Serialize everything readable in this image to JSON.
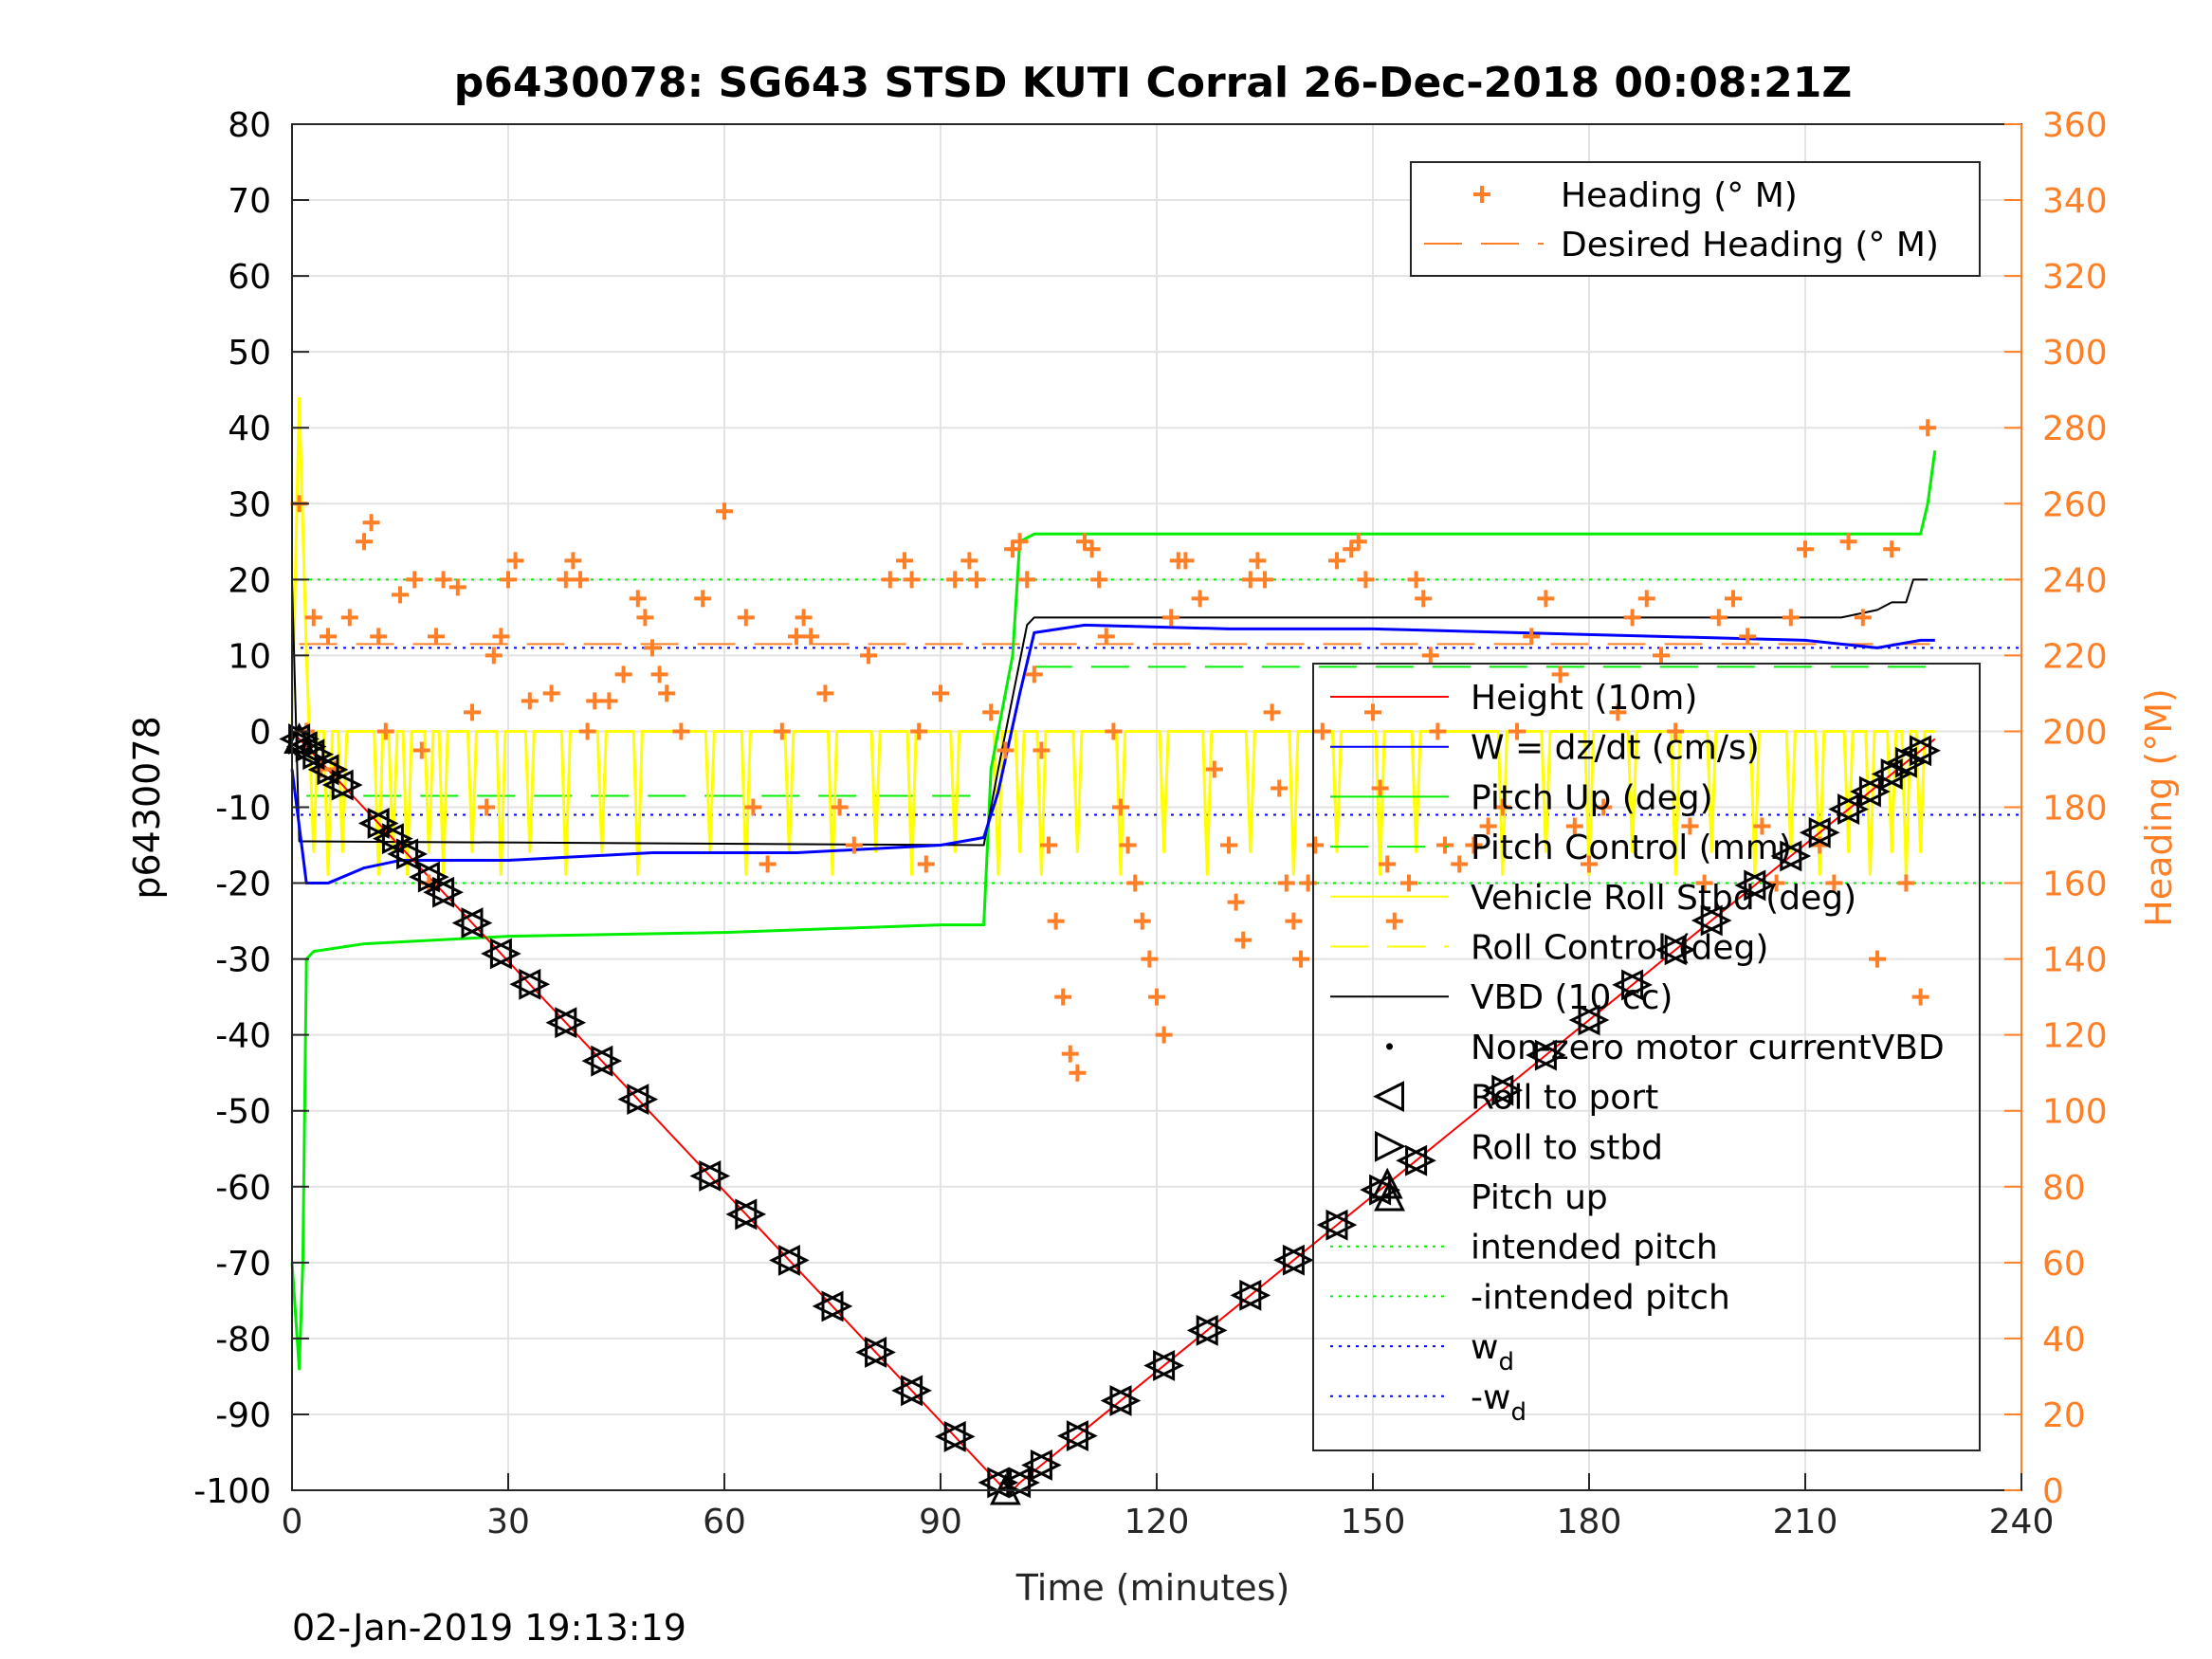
{
  "chart_data": {
    "type": "line",
    "title": "p6430078: SG643 STSD KUTI Corral 26-Dec-2018 00:08:21Z",
    "xlabel": "Time (minutes)",
    "ylabel_left": "p6430078",
    "ylabel_right": "Heading (°M)",
    "footer": "02-Jan-2019 19:13:19",
    "xlim": [
      0,
      240
    ],
    "ylim_left": [
      -100,
      80
    ],
    "ylim_right": [
      0,
      360
    ],
    "xticks": [
      0,
      30,
      60,
      90,
      120,
      150,
      180,
      210,
      240
    ],
    "yticks_left": [
      -100,
      -90,
      -80,
      -70,
      -60,
      -50,
      -40,
      -30,
      -20,
      -10,
      0,
      10,
      20,
      30,
      40,
      50,
      60,
      70,
      80
    ],
    "yticks_right": [
      0,
      20,
      40,
      60,
      80,
      100,
      120,
      140,
      160,
      180,
      200,
      220,
      240,
      260,
      280,
      300,
      320,
      340,
      360
    ],
    "grid": true,
    "colors": {
      "height": "#ff0000",
      "w": "#0000ff",
      "pitch": "#00ee00",
      "roll": "#ffff00",
      "vbd": "#000000",
      "heading": "#ff7f27",
      "markers": "#000000"
    },
    "legend_heading": {
      "placement": "top-right",
      "entries": [
        {
          "label": "Heading (° M)",
          "style": "plus",
          "color": "#ff7f27"
        },
        {
          "label": "Desired Heading (° M)",
          "style": "dash",
          "color": "#ff7f27"
        }
      ]
    },
    "legend_main": {
      "placement": "lower-right",
      "entries": [
        {
          "label": "Height (10m)",
          "style": "line",
          "color": "#ff0000"
        },
        {
          "label": "W = dz/dt (cm/s)",
          "style": "line",
          "color": "#0000ff"
        },
        {
          "label": "Pitch Up (deg)",
          "style": "line",
          "color": "#00ee00"
        },
        {
          "label": "Pitch Control (mm)",
          "style": "dash",
          "color": "#00ee00"
        },
        {
          "label": "Vehicle Roll Stbd (deg)",
          "style": "line",
          "color": "#ffff00"
        },
        {
          "label": "Roll Control (deg)",
          "style": "dash",
          "color": "#ffff00"
        },
        {
          "label": "VBD (10 cc)",
          "style": "line",
          "color": "#000000"
        },
        {
          "label": "Non-zero motor currentVBD",
          "style": "dot",
          "color": "#000000"
        },
        {
          "label": "Roll to port",
          "style": "tri-left",
          "color": "#000000"
        },
        {
          "label": "Roll to stbd",
          "style": "tri-right",
          "color": "#000000"
        },
        {
          "label": "Pitch up",
          "style": "tri-up",
          "color": "#000000"
        },
        {
          "label": "intended pitch",
          "style": "dot-line",
          "color": "#00ee00"
        },
        {
          "label": "-intended pitch",
          "style": "dot-line",
          "color": "#00ee00"
        },
        {
          "label": "w_d",
          "style": "dot-line",
          "color": "#0000ff"
        },
        {
          "label": "-w_d",
          "style": "dot-line",
          "color": "#0000ff"
        }
      ]
    },
    "reference_lines": {
      "intended_pitch": 20,
      "neg_intended_pitch": -20,
      "w_d": 11,
      "neg_w_d": -11,
      "pitch_control_dive": -8.5,
      "pitch_control_climb": 8.5,
      "desired_heading": 223
    },
    "series": {
      "height": {
        "x": [
          0,
          99,
          100,
          101,
          228
        ],
        "y": [
          0,
          -100,
          -100,
          -99,
          -1
        ]
      },
      "vbd": {
        "x": [
          0,
          1,
          2,
          96,
          98,
          102,
          103,
          215,
          220,
          222,
          224,
          225,
          227
        ],
        "y": [
          20,
          -14.5,
          -14.5,
          -15,
          -5,
          14,
          15,
          15,
          16,
          17,
          17,
          20,
          20
        ]
      },
      "w": {
        "x": [
          0,
          2,
          5,
          10,
          15,
          20,
          30,
          50,
          70,
          90,
          96,
          98,
          101,
          103,
          110,
          130,
          150,
          170,
          190,
          210,
          220,
          226,
          228
        ],
        "y": [
          -5,
          -20,
          -20,
          -18,
          -17,
          -17,
          -17,
          -16,
          -16,
          -15,
          -14,
          -8,
          5,
          13,
          14,
          13.5,
          13.5,
          13,
          12.5,
          12,
          11,
          12,
          12
        ]
      },
      "pitch": {
        "x": [
          0,
          1,
          1.5,
          2,
          3,
          10,
          30,
          60,
          90,
          96,
          97,
          100,
          101,
          103,
          120,
          180,
          220,
          226,
          227,
          228
        ],
        "y": [
          -70,
          -84,
          -70,
          -30,
          -29,
          -28,
          -27,
          -26.5,
          -25.5,
          -25.5,
          -5,
          10,
          25,
          26,
          26,
          26,
          26,
          26,
          30,
          37
        ]
      },
      "heading": {
        "x": [
          1,
          2,
          3,
          4,
          5,
          6,
          8,
          10,
          11,
          12,
          13,
          15,
          17,
          18,
          19,
          20,
          21,
          23,
          25,
          27,
          28,
          29,
          30,
          31,
          33,
          36,
          38,
          39,
          40,
          41,
          42,
          44,
          46,
          48,
          49,
          50,
          51,
          52,
          54,
          57,
          60,
          63,
          64,
          66,
          68,
          70,
          71,
          72,
          74,
          76,
          78,
          80,
          83,
          85,
          86,
          87,
          88,
          90,
          92,
          94,
          95,
          97,
          99,
          100,
          101,
          102,
          103,
          104,
          105,
          106,
          107,
          108,
          109,
          110,
          111,
          112,
          113,
          114,
          115,
          116,
          117,
          118,
          119,
          120,
          121,
          122,
          123,
          124,
          126,
          128,
          130,
          131,
          132,
          133,
          134,
          135,
          136,
          137,
          138,
          139,
          140,
          141,
          142,
          143,
          145,
          147,
          148,
          149,
          150,
          151,
          152,
          153,
          155,
          156,
          157,
          158,
          159,
          160,
          162,
          164,
          166,
          168,
          170,
          172,
          174,
          176,
          178,
          180,
          182,
          184,
          186,
          188,
          190,
          192,
          194,
          196,
          198,
          200,
          202,
          204,
          206,
          208,
          210,
          212,
          214,
          216,
          218,
          220,
          222,
          224,
          226,
          227
        ],
        "y": [
          260,
          200,
          230,
          190,
          225,
          190,
          230,
          250,
          255,
          225,
          200,
          236,
          240,
          195,
          160,
          225,
          240,
          238,
          205,
          180,
          220,
          225,
          240,
          245,
          208,
          210,
          240,
          245,
          240,
          200,
          208,
          208,
          215,
          235,
          230,
          222,
          215,
          210,
          200,
          235,
          258,
          230,
          180,
          165,
          200,
          225,
          230,
          225,
          210,
          180,
          170,
          220,
          240,
          245,
          240,
          200,
          165,
          210,
          240,
          245,
          240,
          205,
          195,
          248,
          250,
          240,
          215,
          195,
          170,
          150,
          130,
          115,
          110,
          250,
          248,
          240,
          225,
          200,
          180,
          170,
          160,
          150,
          140,
          130,
          120,
          230,
          245,
          245,
          235,
          190,
          170,
          155,
          145,
          240,
          245,
          240,
          205,
          185,
          160,
          150,
          140,
          160,
          170,
          200,
          245,
          248,
          250,
          240,
          205,
          185,
          165,
          150,
          160,
          240,
          235,
          220,
          200,
          170,
          165,
          170,
          175,
          180,
          200,
          225,
          235,
          215,
          175,
          165,
          180,
          205,
          230,
          235,
          220,
          200,
          175,
          160,
          230,
          235,
          225,
          175,
          160,
          230,
          248,
          170,
          160,
          250,
          230,
          140,
          248,
          160,
          130,
          280
        ]
      },
      "roll_to_port_x": [
        1,
        2,
        3,
        5,
        7,
        12,
        14,
        16,
        19,
        21,
        25,
        29,
        33,
        38,
        43,
        48,
        58,
        63,
        69,
        75,
        81,
        86,
        92,
        98,
        101,
        104,
        109,
        115,
        121,
        127,
        133,
        139,
        145,
        151,
        156,
        168,
        174,
        180,
        186,
        192,
        197,
        203,
        208,
        212,
        216,
        219,
        222,
        224,
        226
      ],
      "pitch_up_x": [
        1,
        99,
        152
      ]
    }
  }
}
